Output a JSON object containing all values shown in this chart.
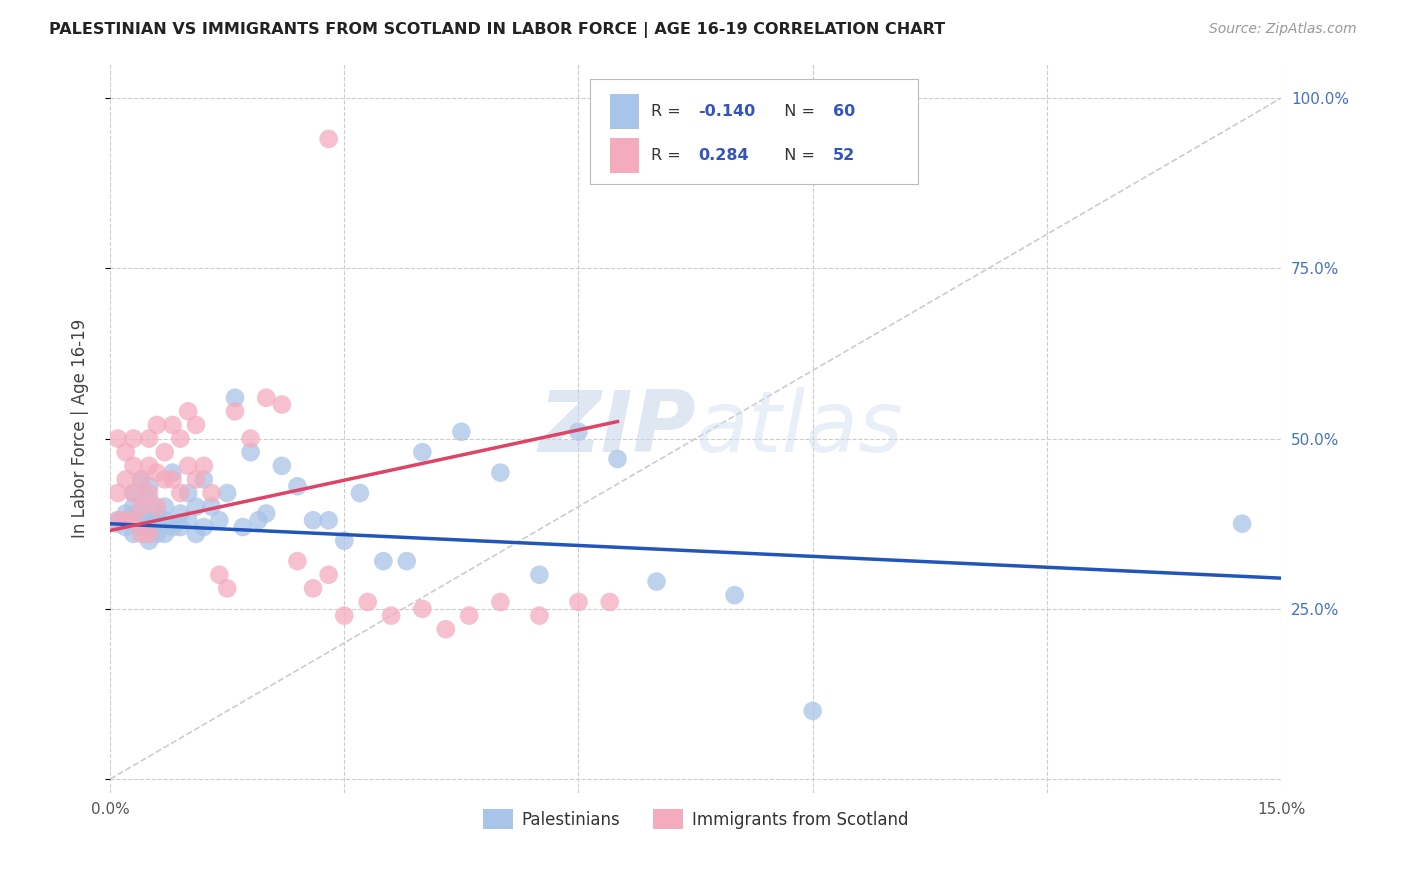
{
  "title": "PALESTINIAN VS IMMIGRANTS FROM SCOTLAND IN LABOR FORCE | AGE 16-19 CORRELATION CHART",
  "source": "Source: ZipAtlas.com",
  "ylabel": "In Labor Force | Age 16-19",
  "xlim": [
    0.0,
    0.15
  ],
  "ylim": [
    -0.02,
    1.05
  ],
  "r_blue": -0.14,
  "n_blue": 60,
  "r_pink": 0.284,
  "n_pink": 52,
  "legend_label_blue": "Palestinians",
  "legend_label_pink": "Immigrants from Scotland",
  "blue_color": "#a8c4e8",
  "pink_color": "#f4abbe",
  "blue_line_color": "#2255bb",
  "pink_line_color": "#dd4466",
  "ref_line_color": "#cccccc",
  "background_color": "#ffffff",
  "grid_color": "#cccccc",
  "watermark_zip": "ZIP",
  "watermark_atlas": "atlas",
  "blue_trend_x0": 0.0,
  "blue_trend_y0": 0.375,
  "blue_trend_x1": 0.15,
  "blue_trend_y1": 0.295,
  "pink_trend_x0": 0.0,
  "pink_trend_y0": 0.365,
  "pink_trend_x1": 0.065,
  "pink_trend_y1": 0.525,
  "blue_scatter_x": [
    0.001,
    0.001,
    0.002,
    0.002,
    0.002,
    0.003,
    0.003,
    0.003,
    0.003,
    0.004,
    0.004,
    0.004,
    0.004,
    0.005,
    0.005,
    0.005,
    0.005,
    0.005,
    0.006,
    0.006,
    0.006,
    0.007,
    0.007,
    0.007,
    0.008,
    0.008,
    0.009,
    0.009,
    0.01,
    0.01,
    0.011,
    0.011,
    0.012,
    0.012,
    0.013,
    0.014,
    0.015,
    0.016,
    0.017,
    0.018,
    0.019,
    0.02,
    0.022,
    0.024,
    0.026,
    0.028,
    0.03,
    0.032,
    0.035,
    0.038,
    0.04,
    0.045,
    0.05,
    0.055,
    0.06,
    0.065,
    0.07,
    0.08,
    0.09,
    0.145
  ],
  "blue_scatter_y": [
    0.375,
    0.38,
    0.37,
    0.39,
    0.38,
    0.42,
    0.38,
    0.36,
    0.4,
    0.44,
    0.37,
    0.39,
    0.38,
    0.43,
    0.41,
    0.38,
    0.37,
    0.35,
    0.39,
    0.38,
    0.36,
    0.4,
    0.38,
    0.36,
    0.45,
    0.37,
    0.39,
    0.37,
    0.42,
    0.38,
    0.4,
    0.36,
    0.44,
    0.37,
    0.4,
    0.38,
    0.42,
    0.56,
    0.37,
    0.48,
    0.38,
    0.39,
    0.46,
    0.43,
    0.38,
    0.38,
    0.35,
    0.42,
    0.32,
    0.32,
    0.48,
    0.51,
    0.45,
    0.3,
    0.51,
    0.47,
    0.29,
    0.27,
    0.1,
    0.375
  ],
  "pink_scatter_x": [
    0.001,
    0.001,
    0.001,
    0.002,
    0.002,
    0.002,
    0.003,
    0.003,
    0.003,
    0.003,
    0.004,
    0.004,
    0.004,
    0.005,
    0.005,
    0.005,
    0.005,
    0.006,
    0.006,
    0.006,
    0.007,
    0.007,
    0.008,
    0.008,
    0.009,
    0.009,
    0.01,
    0.01,
    0.011,
    0.011,
    0.012,
    0.013,
    0.014,
    0.015,
    0.016,
    0.018,
    0.02,
    0.022,
    0.024,
    0.026,
    0.028,
    0.03,
    0.033,
    0.036,
    0.04,
    0.043,
    0.046,
    0.05,
    0.055,
    0.06,
    0.064,
    0.028
  ],
  "pink_scatter_y": [
    0.42,
    0.5,
    0.38,
    0.44,
    0.48,
    0.38,
    0.42,
    0.5,
    0.46,
    0.38,
    0.44,
    0.4,
    0.36,
    0.5,
    0.46,
    0.42,
    0.36,
    0.52,
    0.45,
    0.4,
    0.48,
    0.44,
    0.52,
    0.44,
    0.5,
    0.42,
    0.54,
    0.46,
    0.52,
    0.44,
    0.46,
    0.42,
    0.3,
    0.28,
    0.54,
    0.5,
    0.56,
    0.55,
    0.32,
    0.28,
    0.3,
    0.24,
    0.26,
    0.24,
    0.25,
    0.22,
    0.24,
    0.26,
    0.24,
    0.26,
    0.26,
    0.94
  ]
}
